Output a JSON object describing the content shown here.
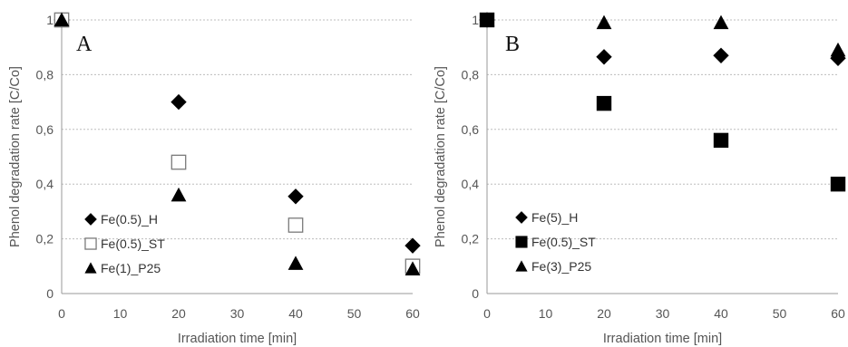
{
  "chart_data": [
    {
      "type": "scatter",
      "panel_label": "A",
      "xlabel": "Irradiation time [min]",
      "ylabel": "Phenol degradation rate [C/Co]",
      "xlim": [
        0,
        60
      ],
      "ylim": [
        0,
        1
      ],
      "xticks": [
        "0",
        "10",
        "20",
        "30",
        "40",
        "50",
        "60"
      ],
      "yticks": [
        "0",
        "0,2",
        "0,4",
        "0,6",
        "0,8",
        "1"
      ],
      "grid": "horizontal dashed",
      "legend_position": "bottom-left",
      "series": [
        {
          "name": "Fe(0.5)_H",
          "marker": "diamond-filled",
          "x": [
            0,
            20,
            40,
            60
          ],
          "y": [
            1.0,
            0.7,
            0.355,
            0.175
          ]
        },
        {
          "name": "Fe(0.5)_ST",
          "marker": "square-open",
          "x": [
            0,
            20,
            40,
            60
          ],
          "y": [
            1.0,
            0.48,
            0.25,
            0.1
          ]
        },
        {
          "name": "Fe(1)_P25",
          "marker": "triangle-filled",
          "x": [
            0,
            20,
            40,
            60
          ],
          "y": [
            1.0,
            0.36,
            0.11,
            0.09
          ]
        }
      ]
    },
    {
      "type": "scatter",
      "panel_label": "B",
      "xlabel": "Irradiation time [min]",
      "ylabel": "Phenol degradation rate [C/Co]",
      "xlim": [
        0,
        60
      ],
      "ylim": [
        0,
        1
      ],
      "xticks": [
        "0",
        "10",
        "20",
        "30",
        "40",
        "50",
        "60"
      ],
      "yticks": [
        "0",
        "0,2",
        "0,4",
        "0,6",
        "0,8",
        "1"
      ],
      "grid": "horizontal dashed",
      "legend_position": "bottom-left",
      "series": [
        {
          "name": "Fe(5)_H",
          "marker": "diamond-filled",
          "x": [
            0,
            20,
            40,
            60
          ],
          "y": [
            1.0,
            0.865,
            0.87,
            0.86
          ]
        },
        {
          "name": "Fe(0.5)_ST",
          "marker": "square-filled",
          "x": [
            0,
            20,
            40,
            60
          ],
          "y": [
            1.0,
            0.695,
            0.56,
            0.4
          ]
        },
        {
          "name": "Fe(3)_P25",
          "marker": "triangle-filled",
          "x": [
            0,
            20,
            40,
            60
          ],
          "y": [
            1.0,
            0.99,
            0.99,
            0.89
          ]
        }
      ]
    }
  ]
}
